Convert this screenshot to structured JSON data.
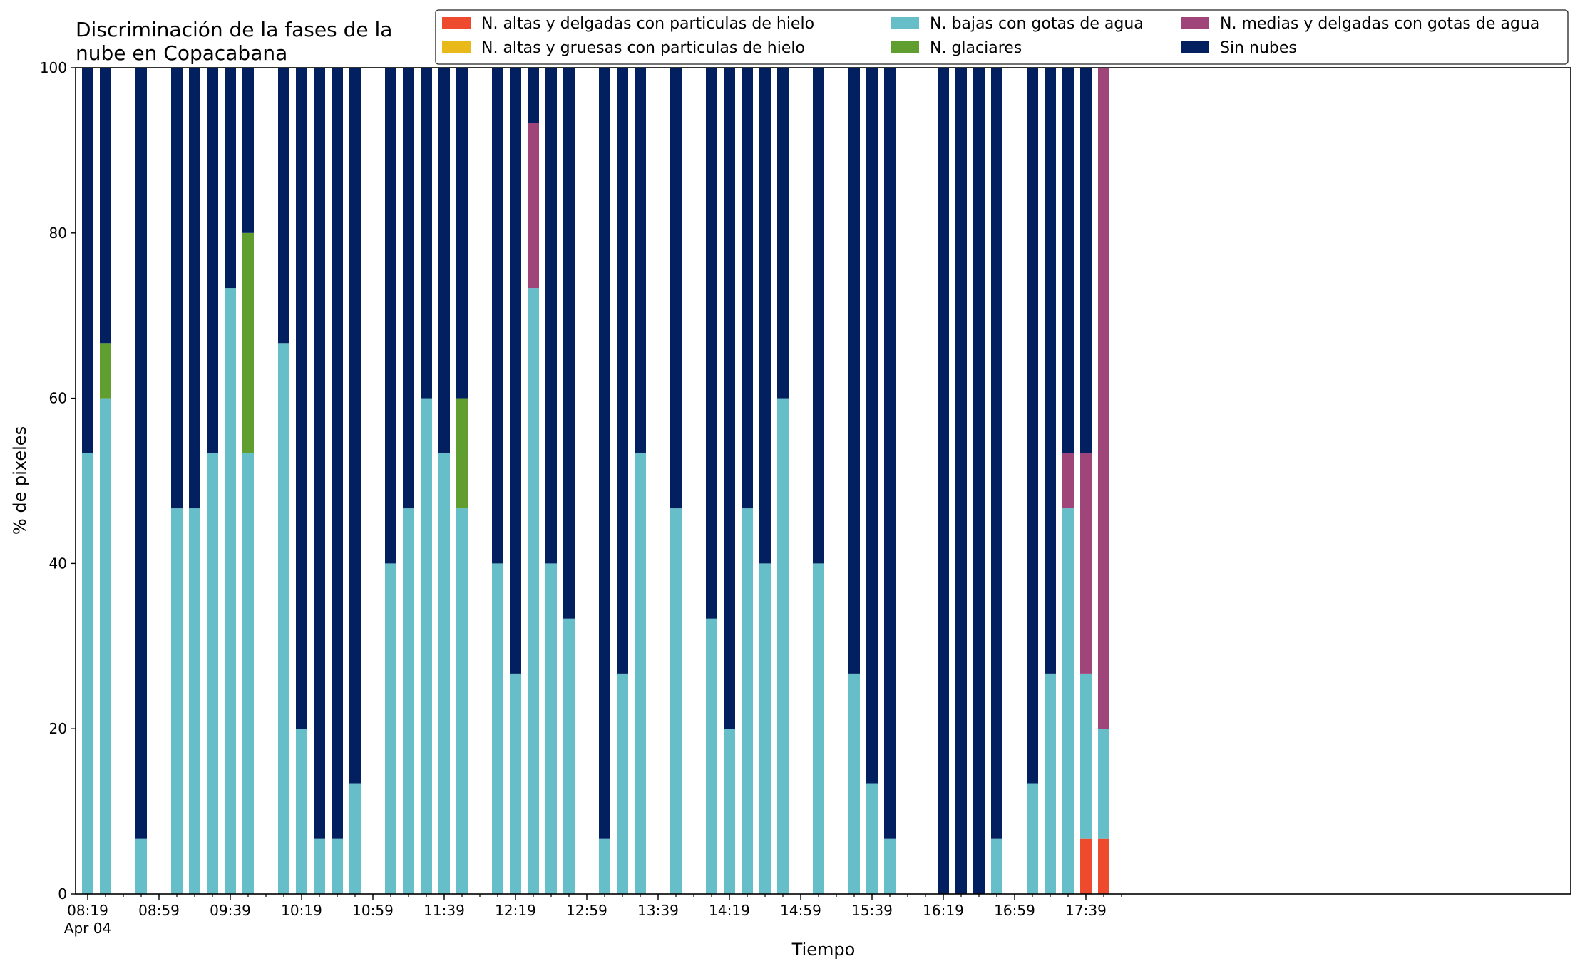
{
  "chart_data": {
    "type": "bar",
    "stacked": true,
    "title_line1": "Discriminación de la fases de la",
    "title_line2": "nube en Copacabana",
    "xlabel": "Tiempo",
    "ylabel": "% de pixeles",
    "ylim": [
      0,
      100
    ],
    "yticks": [
      0,
      20,
      40,
      60,
      80,
      100
    ],
    "xticks": [
      "08:19",
      "08:59",
      "09:39",
      "10:19",
      "10:59",
      "11:39",
      "12:19",
      "12:59",
      "13:39",
      "14:19",
      "14:59",
      "15:39",
      "16:19",
      "16:59",
      "17:39"
    ],
    "xtick_sublabel": "Apr 04",
    "x_start": "08:19",
    "x_end": "17:59",
    "bar_times": [
      "08:19",
      "08:29",
      "08:49",
      "09:09",
      "09:19",
      "09:29",
      "09:39",
      "09:49",
      "10:09",
      "10:19",
      "10:29",
      "10:39",
      "10:49",
      "11:09",
      "11:19",
      "11:29",
      "11:39",
      "11:49",
      "12:09",
      "12:19",
      "12:29",
      "12:39",
      "12:49",
      "13:09",
      "13:19",
      "13:29",
      "13:49",
      "14:09",
      "14:19",
      "14:29",
      "14:39",
      "14:49",
      "15:09",
      "15:29",
      "15:39",
      "15:49",
      "16:19",
      "16:29",
      "16:39",
      "16:49",
      "17:09",
      "17:19",
      "17:29",
      "17:39",
      "17:49"
    ],
    "grid": false,
    "legend_position": "top-right",
    "series": [
      {
        "name": "N. altas y delgadas con particulas de hielo",
        "color": "#ee4a2e",
        "values": [
          0,
          0,
          0,
          0,
          0,
          0,
          0,
          0,
          0,
          0,
          0,
          0,
          0,
          0,
          0,
          0,
          0,
          0,
          0,
          0,
          0,
          0,
          0,
          0,
          0,
          0,
          0,
          0,
          0,
          0,
          0,
          0,
          0,
          0,
          0,
          0,
          0,
          0,
          0,
          0,
          0,
          0,
          0,
          6.67,
          6.67
        ]
      },
      {
        "name": "N. altas y gruesas con particulas de hielo",
        "color": "#e8b918",
        "values": [
          0,
          0,
          0,
          0,
          0,
          0,
          0,
          0,
          0,
          0,
          0,
          0,
          0,
          0,
          0,
          0,
          0,
          0,
          0,
          0,
          0,
          0,
          0,
          0,
          0,
          0,
          0,
          0,
          0,
          0,
          0,
          0,
          0,
          0,
          0,
          0,
          0,
          0,
          0,
          0,
          0,
          0,
          0,
          0,
          0
        ]
      },
      {
        "name": "N. bajas con gotas de agua",
        "color": "#66bec9",
        "values": [
          53.33,
          60,
          6.67,
          46.67,
          46.67,
          53.33,
          73.33,
          53.33,
          66.67,
          20,
          6.67,
          6.67,
          13.33,
          40,
          46.67,
          60,
          53.33,
          46.67,
          40,
          26.67,
          73.33,
          40,
          33.33,
          6.67,
          26.67,
          53.33,
          46.67,
          33.33,
          20,
          46.67,
          40,
          60,
          40,
          26.67,
          13.33,
          6.67,
          0,
          0,
          0,
          6.67,
          13.33,
          26.67,
          46.67,
          20,
          13.33
        ]
      },
      {
        "name": "N. glaciares",
        "color": "#5f9e2f",
        "values": [
          0,
          6.67,
          0,
          0,
          0,
          0,
          0,
          26.67,
          0,
          0,
          0,
          0,
          0,
          0,
          0,
          0,
          0,
          13.33,
          0,
          0,
          0,
          0,
          0,
          0,
          0,
          0,
          0,
          0,
          0,
          0,
          0,
          0,
          0,
          0,
          0,
          0,
          0,
          0,
          0,
          0,
          0,
          0,
          0,
          0,
          0
        ]
      },
      {
        "name": "N. medias y delgadas con gotas de agua",
        "color": "#a0457a",
        "values": [
          0,
          0,
          0,
          0,
          0,
          0,
          0,
          0,
          0,
          0,
          0,
          0,
          0,
          0,
          0,
          0,
          0,
          0,
          0,
          0,
          20,
          0,
          0,
          0,
          0,
          0,
          0,
          0,
          0,
          0,
          0,
          0,
          0,
          0,
          0,
          0,
          0,
          0,
          0,
          0,
          0,
          0,
          6.67,
          26.67,
          80
        ]
      },
      {
        "name": "Sin nubes",
        "color": "#021f5f",
        "values": [
          46.67,
          33.33,
          93.33,
          53.33,
          53.33,
          46.67,
          26.67,
          20,
          33.33,
          80,
          93.33,
          93.33,
          86.67,
          60,
          53.33,
          40,
          46.67,
          40,
          60,
          73.33,
          6.67,
          60,
          66.67,
          93.33,
          73.33,
          46.67,
          53.33,
          66.67,
          80,
          53.33,
          60,
          40,
          60,
          73.33,
          86.67,
          93.33,
          100,
          100,
          100,
          93.33,
          86.67,
          73.33,
          46.67,
          46.67,
          0
        ]
      }
    ]
  }
}
